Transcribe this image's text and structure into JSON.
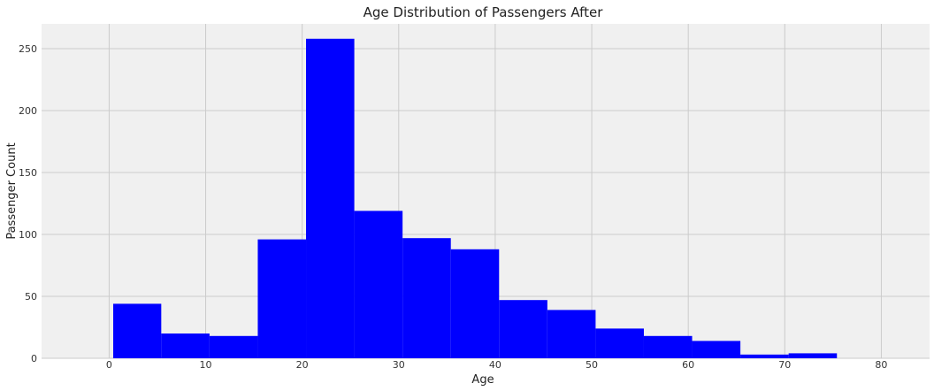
{
  "chart_data": {
    "type": "bar",
    "title": "Age Distribution of Passengers After",
    "xlabel": "Age",
    "ylabel": "Passenger Count",
    "xlim": [
      -7,
      85
    ],
    "ylim": [
      0,
      270
    ],
    "xticks": [
      0,
      10,
      20,
      30,
      40,
      50,
      60,
      70,
      80
    ],
    "yticks": [
      0,
      50,
      100,
      150,
      200,
      250
    ],
    "grid": true,
    "bins": [
      {
        "start": 0.42,
        "end": 5.4,
        "count": 44
      },
      {
        "start": 5.4,
        "end": 10.4,
        "count": 20
      },
      {
        "start": 10.4,
        "end": 15.4,
        "count": 18
      },
      {
        "start": 15.4,
        "end": 20.4,
        "count": 96
      },
      {
        "start": 20.4,
        "end": 25.4,
        "count": 258
      },
      {
        "start": 25.4,
        "end": 30.4,
        "count": 119
      },
      {
        "start": 30.4,
        "end": 35.4,
        "count": 97
      },
      {
        "start": 35.4,
        "end": 40.4,
        "count": 88
      },
      {
        "start": 40.4,
        "end": 45.4,
        "count": 47
      },
      {
        "start": 45.4,
        "end": 50.4,
        "count": 39
      },
      {
        "start": 50.4,
        "end": 55.4,
        "count": 24
      },
      {
        "start": 55.4,
        "end": 60.4,
        "count": 18
      },
      {
        "start": 60.4,
        "end": 65.4,
        "count": 14
      },
      {
        "start": 65.4,
        "end": 70.4,
        "count": 3
      },
      {
        "start": 70.4,
        "end": 75.4,
        "count": 4
      }
    ],
    "colors": {
      "bar": "#0000ff",
      "background": "#f0f0f0",
      "grid": "#cbcbcb"
    }
  }
}
